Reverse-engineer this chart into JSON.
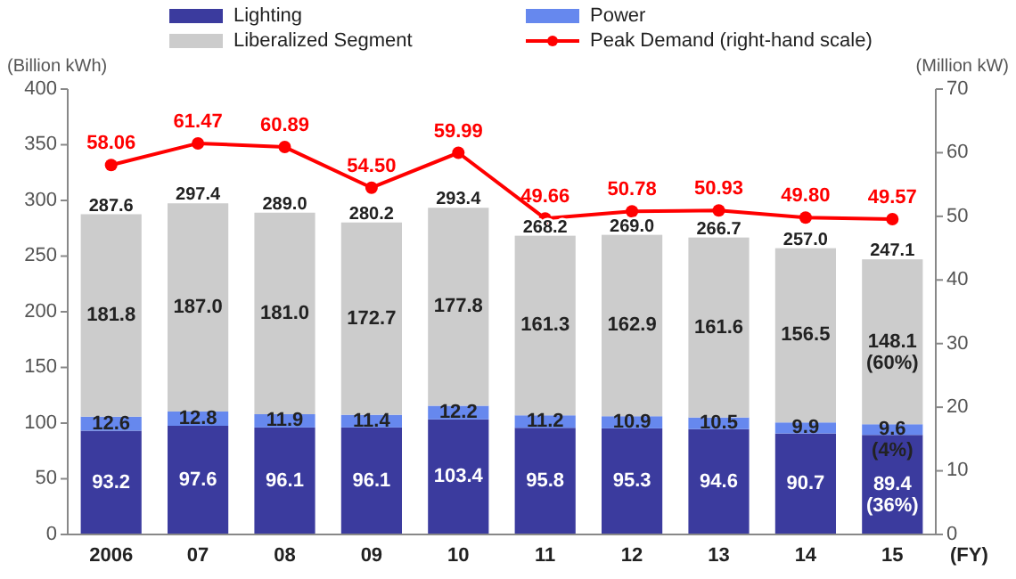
{
  "chart_data": {
    "type": "bar",
    "stacked": true,
    "categories": [
      "2006",
      "07",
      "08",
      "09",
      "10",
      "11",
      "12",
      "13",
      "14",
      "15"
    ],
    "ylabel": "(Billion  kWh)",
    "y2label": "(Million  kW)",
    "annotations": [
      "(FY)"
    ],
    "ylim": [
      0,
      400
    ],
    "yticks": [
      0,
      50,
      100,
      150,
      200,
      250,
      300,
      350,
      400
    ],
    "y2lim": [
      0,
      70
    ],
    "y2ticks": [
      0,
      10,
      20,
      30,
      40,
      50,
      60,
      70
    ],
    "legend": "top",
    "grid": false,
    "series": [
      {
        "name": "Lighting",
        "color": "#3b3b9e",
        "values": [
          93.2,
          97.6,
          96.1,
          96.1,
          103.4,
          95.8,
          95.3,
          94.6,
          90.7,
          89.4
        ],
        "value_labels": [
          "93.2",
          "97.6",
          "96.1",
          "96.1",
          "103.4",
          "95.8",
          "95.3",
          "94.6",
          "90.7",
          "89.4\n(36%)"
        ]
      },
      {
        "name": "Power",
        "color": "#6688ee",
        "values": [
          12.6,
          12.8,
          11.9,
          11.4,
          12.2,
          11.2,
          10.9,
          10.5,
          9.9,
          9.6
        ],
        "value_labels": [
          "12.6",
          "12.8",
          "11.9",
          "11.4",
          "12.2",
          "11.2",
          "10.9",
          "10.5",
          "9.9",
          "9.6\n(4%)"
        ]
      },
      {
        "name": "Liberalized Segment",
        "color": "#cccccc",
        "values": [
          181.8,
          187.0,
          181.0,
          172.7,
          177.8,
          161.3,
          162.9,
          161.6,
          156.5,
          148.1
        ],
        "value_labels": [
          "181.8",
          "187.0",
          "181.0",
          "172.7",
          "177.8",
          "161.3",
          "162.9",
          "161.6",
          "156.5",
          "148.1\n(60%)"
        ]
      },
      {
        "name": "Peak Demand (right-hand scale)",
        "type": "line",
        "axis": "y2",
        "marker": "circle",
        "color": "#ff0000",
        "values": [
          58.06,
          61.47,
          60.89,
          54.5,
          59.99,
          49.66,
          50.78,
          50.93,
          49.8,
          49.57
        ],
        "value_labels": [
          "58.06",
          "61.47",
          "60.89",
          "54.50",
          "59.99",
          "49.66",
          "50.78",
          "50.93",
          "49.80",
          "49.57"
        ]
      }
    ],
    "totals": [
      "287.6",
      "297.4",
      "289.0",
      "280.2",
      "293.4",
      "268.2",
      "269.0",
      "266.7",
      "257.0",
      "247.1"
    ]
  }
}
